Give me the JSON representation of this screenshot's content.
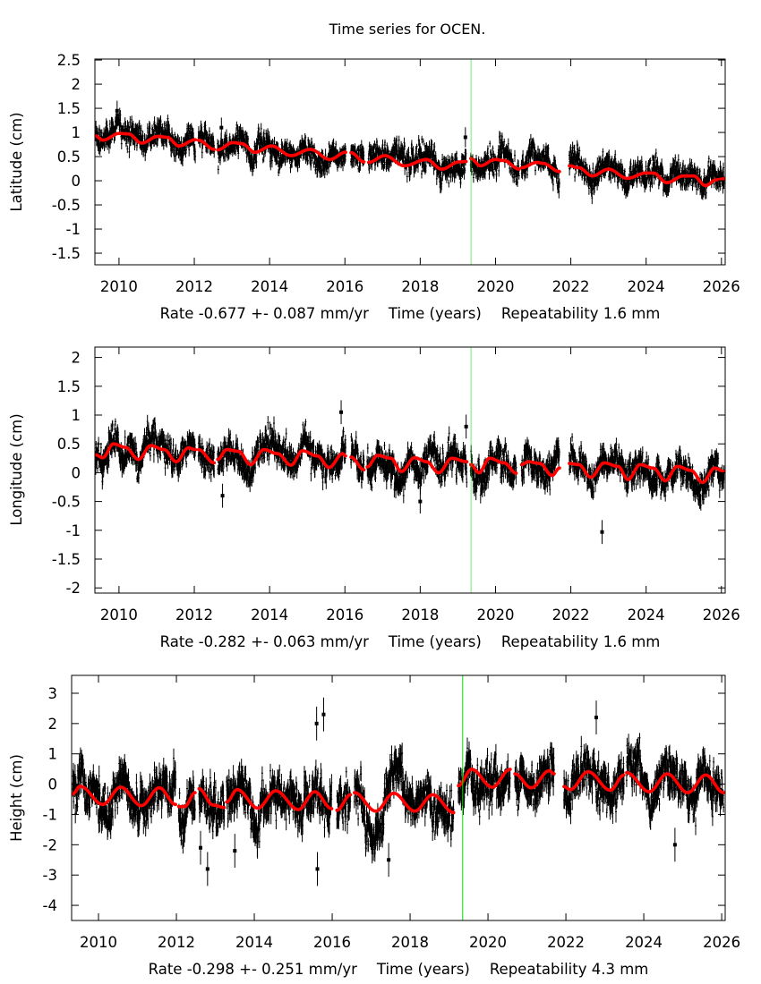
{
  "title": "Time series for OCEN.",
  "colors": {
    "points": "#000000",
    "fit": "#ff0000",
    "marker_line": "#00dd00",
    "frame": "#000000"
  },
  "chart_data": [
    {
      "type": "scatter",
      "ylabel": "Latitude (cm)",
      "xlabel": "Time (years)",
      "rate": "Rate -0.677 +- 0.087 mm/yr",
      "repeatability": "Repeatability 1.6 mm",
      "repeatability_mm": 1.6,
      "grid": false,
      "xlim": [
        2009.36,
        2026.1
      ],
      "ylim": [
        -1.74,
        2.52
      ],
      "xticks": [
        2010,
        2012,
        2014,
        2016,
        2018,
        2020,
        2022,
        2024,
        2026
      ],
      "yticks": [
        2.5,
        2,
        1.5,
        1,
        0.5,
        0,
        -0.5,
        -1,
        -1.5
      ],
      "vertical_line_x": 2019.35,
      "fit_segments": [
        [
          [
            2009.37,
            0.93
          ],
          [
            2009.57,
            0.84
          ],
          [
            2010.01,
            0.98
          ],
          [
            2010.25,
            0.97
          ],
          [
            2010.6,
            0.78
          ],
          [
            2011.04,
            0.92
          ],
          [
            2011.28,
            0.9
          ],
          [
            2011.59,
            0.72
          ],
          [
            2012.03,
            0.85
          ]
        ],
        [
          [
            2012.11,
            0.84
          ],
          [
            2012.53,
            0.65
          ]
        ],
        [
          [
            2012.62,
            0.64
          ],
          [
            2013.02,
            0.79
          ],
          [
            2013.26,
            0.77
          ],
          [
            2013.61,
            0.59
          ],
          [
            2014.05,
            0.72
          ],
          [
            2014.57,
            0.52
          ],
          [
            2015.08,
            0.65
          ],
          [
            2015.6,
            0.44
          ],
          [
            2016.02,
            0.59
          ]
        ],
        [
          [
            2016.16,
            0.58
          ],
          [
            2016.51,
            0.39
          ]
        ],
        [
          [
            2016.63,
            0.38
          ],
          [
            2017.06,
            0.52
          ],
          [
            2017.58,
            0.31
          ],
          [
            2018.17,
            0.44
          ],
          [
            2018.57,
            0.24
          ],
          [
            2019.04,
            0.39
          ],
          [
            2019.22,
            0.4
          ]
        ],
        [
          [
            2019.34,
            0.46
          ],
          [
            2019.6,
            0.31
          ],
          [
            2019.99,
            0.44
          ],
          [
            2020.22,
            0.42
          ],
          [
            2020.63,
            0.24
          ]
        ],
        [
          [
            2020.69,
            0.27
          ],
          [
            2021.1,
            0.38
          ],
          [
            2021.26,
            0.36
          ],
          [
            2021.7,
            0.19
          ]
        ],
        [
          [
            2021.96,
            0.31
          ],
          [
            2022.21,
            0.27
          ],
          [
            2022.57,
            0.1
          ],
          [
            2023.0,
            0.24
          ],
          [
            2023.5,
            0.05
          ],
          [
            2023.99,
            0.16
          ],
          [
            2024.19,
            0.16
          ],
          [
            2024.55,
            -0.04
          ],
          [
            2024.99,
            0.1
          ],
          [
            2025.26,
            0.1
          ],
          [
            2025.58,
            -0.1
          ],
          [
            2025.86,
            0.02
          ],
          [
            2026.07,
            0.04
          ]
        ]
      ],
      "outliers": [
        [
          2012.72,
          1.1
        ],
        [
          2009.95,
          1.45
        ],
        [
          2019.2,
          0.9
        ]
      ]
    },
    {
      "type": "scatter",
      "ylabel": "Longitude (cm)",
      "xlabel": "Time (years)",
      "rate": "Rate -0.282 +- 0.063 mm/yr",
      "repeatability": "Repeatability 1.6 mm",
      "repeatability_mm": 1.6,
      "grid": false,
      "xlim": [
        2009.36,
        2026.1
      ],
      "ylim": [
        -2.09,
        2.18
      ],
      "xticks": [
        2010,
        2012,
        2014,
        2016,
        2018,
        2020,
        2022,
        2024,
        2026
      ],
      "yticks": [
        2,
        1.5,
        1,
        0.5,
        0,
        -0.5,
        -1,
        -1.5,
        -2
      ],
      "vertical_line_x": 2019.35,
      "fit_segments": [
        [
          [
            2009.37,
            0.31
          ],
          [
            2009.57,
            0.26
          ],
          [
            2009.85,
            0.5
          ],
          [
            2010.17,
            0.44
          ],
          [
            2010.52,
            0.23
          ],
          [
            2010.84,
            0.47
          ],
          [
            2011.2,
            0.4
          ],
          [
            2011.52,
            0.19
          ],
          [
            2011.84,
            0.43
          ],
          [
            2012.03,
            0.4
          ]
        ],
        [
          [
            2012.11,
            0.4
          ],
          [
            2012.53,
            0.17
          ]
        ],
        [
          [
            2012.62,
            0.23
          ],
          [
            2012.86,
            0.4
          ],
          [
            2013.18,
            0.37
          ],
          [
            2013.49,
            0.14
          ],
          [
            2013.85,
            0.4
          ],
          [
            2014.21,
            0.33
          ],
          [
            2014.57,
            0.13
          ],
          [
            2014.87,
            0.38
          ],
          [
            2015.27,
            0.29
          ],
          [
            2015.58,
            0.09
          ],
          [
            2015.94,
            0.33
          ],
          [
            2016.02,
            0.29
          ]
        ],
        [
          [
            2016.16,
            0.27
          ],
          [
            2016.51,
            0.05
          ]
        ],
        [
          [
            2016.59,
            0.1
          ],
          [
            2016.87,
            0.3
          ],
          [
            2017.22,
            0.25
          ],
          [
            2017.5,
            0.02
          ],
          [
            2017.85,
            0.26
          ],
          [
            2018.17,
            0.19
          ],
          [
            2018.49,
            0.0
          ],
          [
            2018.84,
            0.25
          ],
          [
            2019.24,
            0.19
          ]
        ],
        [
          [
            2019.34,
            0.14
          ],
          [
            2019.56,
            0.0
          ],
          [
            2019.84,
            0.25
          ],
          [
            2020.23,
            0.17
          ],
          [
            2020.55,
            -0.01
          ]
        ],
        [
          [
            2020.69,
            0.14
          ],
          [
            2020.87,
            0.19
          ],
          [
            2021.18,
            0.16
          ],
          [
            2021.5,
            -0.05
          ],
          [
            2021.7,
            0.08
          ]
        ],
        [
          [
            2021.96,
            0.16
          ],
          [
            2022.21,
            0.14
          ],
          [
            2022.53,
            -0.08
          ],
          [
            2022.89,
            0.17
          ],
          [
            2023.25,
            0.11
          ],
          [
            2023.52,
            -0.12
          ],
          [
            2023.84,
            0.14
          ],
          [
            2024.19,
            0.08
          ],
          [
            2024.51,
            -0.14
          ],
          [
            2024.83,
            0.11
          ],
          [
            2025.19,
            0.04
          ],
          [
            2025.5,
            -0.17
          ],
          [
            2025.82,
            0.08
          ],
          [
            2026.07,
            0.02
          ]
        ]
      ],
      "outliers": [
        [
          2022.83,
          -1.03
        ],
        [
          2015.9,
          1.05
        ],
        [
          2012.75,
          -0.4
        ],
        [
          2019.22,
          0.8
        ],
        [
          2018.0,
          -0.5
        ]
      ]
    },
    {
      "type": "scatter",
      "ylabel": "Height (cm)",
      "xlabel": "Time (years)",
      "rate": "Rate -0.298 +- 0.251 mm/yr",
      "repeatability": "Repeatability 4.3 mm",
      "repeatability_mm": 4.3,
      "grid": false,
      "xlim": [
        2009.31,
        2026.09
      ],
      "ylim": [
        -4.5,
        3.59
      ],
      "xticks": [
        2010,
        2012,
        2014,
        2016,
        2018,
        2020,
        2022,
        2024,
        2026
      ],
      "yticks": [
        3,
        2,
        1,
        0,
        -1,
        -2,
        -3,
        -4
      ],
      "vertical_line_x": 2019.35,
      "fit_segments": [
        [
          [
            2009.34,
            -0.32
          ],
          [
            2009.53,
            -0.07
          ],
          [
            2010.11,
            -0.67
          ],
          [
            2010.57,
            -0.1
          ],
          [
            2011.1,
            -0.71
          ],
          [
            2011.56,
            -0.12
          ],
          [
            2011.98,
            -0.67
          ]
        ],
        [
          [
            2012.06,
            -0.74
          ],
          [
            2012.21,
            -0.74
          ],
          [
            2012.48,
            -0.28
          ]
        ],
        [
          [
            2012.58,
            -0.15
          ],
          [
            2012.94,
            -0.69
          ],
          [
            2013.23,
            -0.77
          ]
        ],
        [
          [
            2013.29,
            -0.59
          ],
          [
            2013.56,
            -0.18
          ],
          [
            2014.09,
            -0.79
          ],
          [
            2014.55,
            -0.22
          ],
          [
            2015.13,
            -0.84
          ],
          [
            2015.55,
            -0.25
          ],
          [
            2015.99,
            -0.81
          ]
        ],
        [
          [
            2016.12,
            -0.86
          ],
          [
            2016.47,
            -0.35
          ]
        ],
        [
          [
            2016.57,
            -0.28
          ],
          [
            2017.12,
            -0.89
          ],
          [
            2017.58,
            -0.3
          ],
          [
            2018.12,
            -0.89
          ],
          [
            2018.58,
            -0.35
          ],
          [
            2019.12,
            -0.94
          ]
        ],
        [
          [
            2019.24,
            -0.05
          ],
          [
            2019.58,
            0.49
          ],
          [
            2020.11,
            -0.1
          ],
          [
            2020.57,
            0.49
          ]
        ],
        [
          [
            2020.69,
            0.34
          ],
          [
            2021.11,
            -0.12
          ],
          [
            2021.57,
            0.44
          ],
          [
            2021.7,
            0.34
          ]
        ],
        [
          [
            2021.95,
            -0.08
          ],
          [
            2022.11,
            -0.18
          ],
          [
            2022.57,
            0.41
          ],
          [
            2023.14,
            -0.2
          ],
          [
            2023.49,
            0.3
          ]
        ],
        [
          [
            2023.56,
            0.38
          ],
          [
            2024.14,
            -0.25
          ],
          [
            2024.6,
            0.34
          ],
          [
            2025.13,
            -0.28
          ],
          [
            2025.59,
            0.3
          ],
          [
            2026.05,
            -0.28
          ]
        ]
      ],
      "outliers": [
        [
          2012.8,
          -2.8
        ],
        [
          2013.5,
          -2.2
        ],
        [
          2015.6,
          2.0
        ],
        [
          2015.78,
          2.3
        ],
        [
          2015.62,
          -2.8
        ],
        [
          2017.45,
          -2.5
        ],
        [
          2022.78,
          2.2
        ],
        [
          2024.8,
          -2.0
        ],
        [
          2012.62,
          -2.1
        ]
      ]
    }
  ]
}
